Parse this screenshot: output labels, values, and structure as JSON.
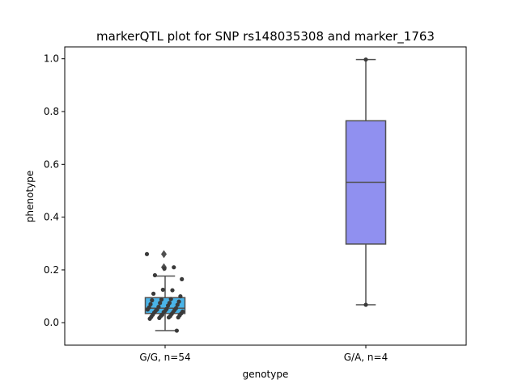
{
  "chart_data": {
    "type": "box",
    "title": "markerQTL plot for SNP rs148035308 and marker_1763",
    "xlabel": "genotype",
    "ylabel": "phenotype",
    "ylim": [
      -0.085,
      1.045
    ],
    "yticks": [
      "0.0",
      "0.2",
      "0.4",
      "0.6",
      "0.8",
      "1.0"
    ],
    "grid": false,
    "categories": [
      "G/G, n=54",
      "G/A, n=4"
    ],
    "boxes": [
      {
        "category": "G/G, n=54",
        "color": "#4AB4E8",
        "whisker_low": -0.03,
        "q1": 0.035,
        "median": 0.055,
        "q3": 0.095,
        "whisker_high": 0.177,
        "outliers": [
          0.26,
          0.21
        ]
      },
      {
        "category": "G/A, n=4",
        "color": "#9090F0",
        "whisker_low": 0.068,
        "q1": 0.298,
        "median": 0.532,
        "q3": 0.765,
        "whisker_high": 0.997,
        "outliers": []
      }
    ],
    "points": [
      {
        "category": "G/G, n=54",
        "values": [
          0.26,
          0.21,
          0.205,
          0.18,
          0.165,
          0.123,
          0.125,
          0.11,
          0.1,
          0.09,
          0.088,
          0.085,
          0.08,
          0.075,
          0.075,
          0.07,
          0.068,
          0.065,
          0.06,
          0.058,
          0.055,
          0.052,
          0.05,
          0.05,
          0.048,
          0.045,
          0.045,
          0.042,
          0.04,
          0.04,
          0.038,
          0.035,
          0.033,
          0.03,
          0.03,
          0.028,
          0.025,
          0.025,
          0.022,
          0.02,
          0.02,
          0.018,
          0.015,
          -0.03
        ]
      },
      {
        "category": "G/A, n=4",
        "values": [
          0.997,
          0.068
        ]
      }
    ]
  },
  "colors": {
    "axis": "#000000",
    "box_edge": "#505050",
    "points": "#3a3a3a"
  }
}
